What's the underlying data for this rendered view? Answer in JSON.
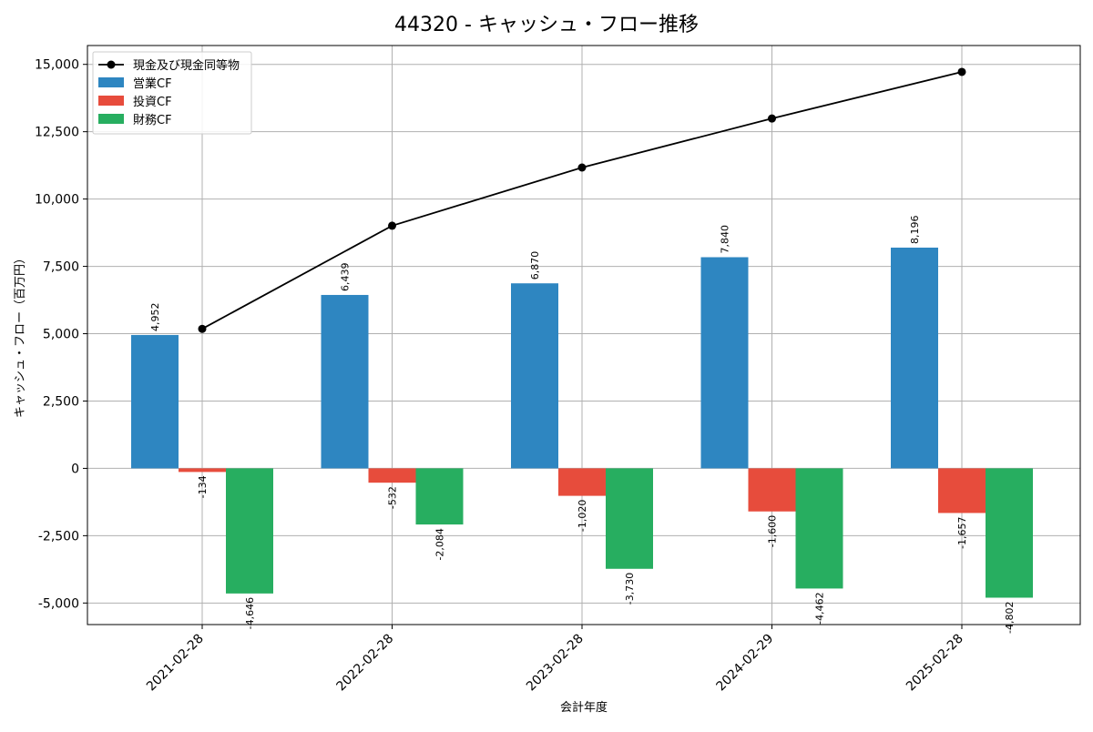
{
  "chart_data": {
    "type": "bar",
    "title": "44320 - キャッシュ・フロー推移",
    "xlabel": "会計年度",
    "ylabel": "キャッシュ・フロー（百万円）",
    "ylim": [
      -5800,
      15700
    ],
    "yticks": [
      -5000,
      -2500,
      0,
      2500,
      5000,
      7500,
      10000,
      12500,
      15000
    ],
    "ytick_labels": [
      "-5,000",
      "-2,500",
      "0",
      "2,500",
      "5,000",
      "7,500",
      "10,000",
      "12,500",
      "15,000"
    ],
    "grid": true,
    "legend_position": "top-left",
    "categories": [
      "2021-02-28",
      "2022-02-28",
      "2023-02-28",
      "2024-02-29",
      "2025-02-28"
    ],
    "series": [
      {
        "name": "営業CF",
        "kind": "bar",
        "color": "#2e86c1",
        "values": [
          4952,
          6439,
          6870,
          7840,
          8196
        ],
        "labels": [
          "4,952",
          "6,439",
          "6,870",
          "7,840",
          "8,196"
        ]
      },
      {
        "name": "投資CF",
        "kind": "bar",
        "color": "#e74c3c",
        "values": [
          -134,
          -532,
          -1020,
          -1600,
          -1657
        ],
        "labels": [
          "-134",
          "-532",
          "-1,020",
          "-1,600",
          "-1,657"
        ]
      },
      {
        "name": "財務CF",
        "kind": "bar",
        "color": "#27ae60",
        "values": [
          -4646,
          -2084,
          -3730,
          -4462,
          -4802
        ],
        "labels": [
          "-4,646",
          "-2,084",
          "-3,730",
          "-4,462",
          "-4,802"
        ]
      }
    ],
    "line_series": {
      "name": "現金及び現金同等物",
      "color": "#000000",
      "values": [
        5180,
        9010,
        11170,
        12990,
        14720
      ]
    }
  }
}
